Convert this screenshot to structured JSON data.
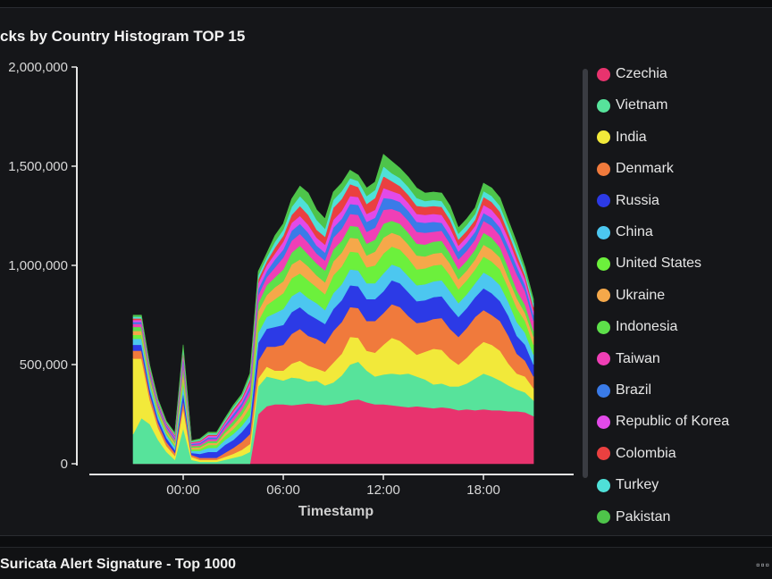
{
  "panel": {
    "title": "cks by Country Histogram TOP 15"
  },
  "bottom_panel": {
    "title": "Suricata Alert Signature - Top 1000",
    "menu_icon": "grid-icon"
  },
  "chart_data": {
    "type": "area",
    "stacked": true,
    "title": "cks by Country Histogram TOP 15",
    "xlabel": "Timestamp",
    "ylabel": "",
    "ylim": [
      0,
      2000000
    ],
    "y_ticks": [
      {
        "value": 0,
        "label": "0"
      },
      {
        "value": 500000,
        "label": "500,000"
      },
      {
        "value": 1000000,
        "label": "1,000,000"
      },
      {
        "value": 1500000,
        "label": "1,500,000"
      },
      {
        "value": 2000000,
        "label": "2,000,000"
      }
    ],
    "x_ticks": [
      {
        "value": 3,
        "label": "00:00"
      },
      {
        "value": 9,
        "label": "06:00"
      },
      {
        "value": 15,
        "label": "12:00"
      },
      {
        "value": 21,
        "label": "18:00"
      }
    ],
    "x_unit": "hours since series start (half-hour samples)",
    "x": [
      0,
      0.5,
      1,
      1.5,
      2,
      2.5,
      3,
      3.5,
      4,
      4.5,
      5,
      5.5,
      6,
      6.5,
      7,
      7.5,
      8,
      8.5,
      9,
      9.5,
      10,
      10.5,
      11,
      11.5,
      12,
      12.5,
      13,
      13.5,
      14,
      14.5,
      15,
      15.5,
      16,
      16.5,
      17,
      17.5,
      18,
      18.5,
      19,
      19.5,
      20,
      20.5,
      21,
      21.5,
      22,
      22.5,
      23,
      23.5,
      24,
      24.5,
      25,
      25.5,
      26,
      26.5,
      27,
      27.5,
      28,
      28.5,
      29,
      29.5,
      30
    ],
    "legend_position": "right",
    "grid": false,
    "series": [
      {
        "name": "Czechia",
        "color": "#e8336e",
        "values": [
          0,
          0,
          0,
          0,
          0,
          0,
          0,
          0,
          0,
          0,
          0,
          0,
          0,
          0,
          0,
          0,
          0,
          0,
          0,
          0,
          0,
          0,
          0,
          0,
          0,
          0,
          0,
          0,
          0,
          0,
          0,
          0,
          0,
          0,
          0,
          0,
          0,
          0,
          0,
          0,
          0,
          0,
          0,
          0,
          0,
          0,
          0,
          0,
          0,
          0,
          0,
          0,
          0,
          0,
          0,
          0,
          0,
          0,
          0,
          0,
          0
        ]
      },
      {
        "name": "Vietnam",
        "color": "#57e39b",
        "values": [
          0,
          0,
          0,
          0,
          0,
          0,
          0,
          0,
          0,
          0,
          0,
          0,
          0,
          0,
          0,
          0,
          0,
          0,
          0,
          0,
          0,
          0,
          0,
          0,
          0,
          0,
          0,
          0,
          0,
          0,
          0,
          0,
          0,
          0,
          0,
          0,
          0,
          0,
          0,
          0,
          0,
          0,
          0,
          0,
          0,
          0,
          0,
          0,
          0,
          0,
          0,
          0,
          0,
          0,
          0,
          0,
          0,
          0,
          0,
          0,
          0
        ]
      },
      {
        "name": "India",
        "color": "#f2e93a",
        "values": [
          0,
          0,
          0,
          0,
          0,
          0,
          0,
          0,
          0,
          0,
          0,
          0,
          0,
          0,
          0,
          0,
          0,
          0,
          0,
          0,
          0,
          0,
          0,
          0,
          0,
          0,
          0,
          0,
          0,
          0,
          0,
          0,
          0,
          0,
          0,
          0,
          0,
          0,
          0,
          0,
          0,
          0,
          0,
          0,
          0,
          0,
          0,
          0,
          0,
          0,
          0,
          0,
          0,
          0,
          0,
          0,
          0,
          0,
          0,
          0,
          0
        ]
      },
      {
        "name": "Denmark",
        "color": "#f07a3c",
        "values": [
          0,
          0,
          0,
          0,
          0,
          0,
          0,
          0,
          0,
          0,
          0,
          0,
          0,
          0,
          0,
          0,
          0,
          0,
          0,
          0,
          0,
          0,
          0,
          0,
          0,
          0,
          0,
          0,
          0,
          0,
          0,
          0,
          0,
          0,
          0,
          0,
          0,
          0,
          0,
          0,
          0,
          0,
          0,
          0,
          0,
          0,
          0,
          0,
          0,
          0,
          0,
          0,
          0,
          0,
          0,
          0,
          0,
          0,
          0,
          0,
          0
        ]
      },
      {
        "name": "Russia",
        "color": "#2c3ae6",
        "values": [
          0,
          0,
          0,
          0,
          0,
          0,
          0,
          0,
          0,
          0,
          0,
          0,
          0,
          0,
          0,
          0,
          0,
          0,
          0,
          0,
          0,
          0,
          0,
          0,
          0,
          0,
          0,
          0,
          0,
          0,
          0,
          0,
          0,
          0,
          0,
          0,
          0,
          0,
          0,
          0,
          0,
          0,
          0,
          0,
          0,
          0,
          0,
          0,
          0,
          0,
          0,
          0,
          0,
          0,
          0,
          0,
          0,
          0,
          0,
          0,
          0
        ]
      },
      {
        "name": "China",
        "color": "#4cc7f0",
        "values": [
          0,
          0,
          0,
          0,
          0,
          0,
          0,
          0,
          0,
          0,
          0,
          0,
          0,
          0,
          0,
          0,
          0,
          0,
          0,
          0,
          0,
          0,
          0,
          0,
          0,
          0,
          0,
          0,
          0,
          0,
          0,
          0,
          0,
          0,
          0,
          0,
          0,
          0,
          0,
          0,
          0,
          0,
          0,
          0,
          0,
          0,
          0,
          0,
          0,
          0,
          0,
          0,
          0,
          0,
          0,
          0,
          0,
          0,
          0,
          0,
          0
        ]
      },
      {
        "name": "United States",
        "color": "#6cf03c",
        "values": [
          0,
          0,
          0,
          0,
          0,
          0,
          0,
          0,
          0,
          0,
          0,
          0,
          0,
          0,
          0,
          0,
          0,
          0,
          0,
          0,
          0,
          0,
          0,
          0,
          0,
          0,
          0,
          0,
          0,
          0,
          0,
          0,
          0,
          0,
          0,
          0,
          0,
          0,
          0,
          0,
          0,
          0,
          0,
          0,
          0,
          0,
          0,
          0,
          0,
          0,
          0,
          0,
          0,
          0,
          0,
          0,
          0,
          0,
          0,
          0,
          0
        ]
      },
      {
        "name": "Ukraine",
        "color": "#f5a84a",
        "values": [
          0,
          0,
          0,
          0,
          0,
          0,
          0,
          0,
          0,
          0,
          0,
          0,
          0,
          0,
          0,
          0,
          0,
          0,
          0,
          0,
          0,
          0,
          0,
          0,
          0,
          0,
          0,
          0,
          0,
          0,
          0,
          0,
          0,
          0,
          0,
          0,
          0,
          0,
          0,
          0,
          0,
          0,
          0,
          0,
          0,
          0,
          0,
          0,
          0,
          0,
          0,
          0,
          0,
          0,
          0,
          0,
          0,
          0,
          0,
          0,
          0
        ]
      },
      {
        "name": "Indonesia",
        "color": "#5de04a",
        "values": [
          0,
          0,
          0,
          0,
          0,
          0,
          0,
          0,
          0,
          0,
          0,
          0,
          0,
          0,
          0,
          0,
          0,
          0,
          0,
          0,
          0,
          0,
          0,
          0,
          0,
          0,
          0,
          0,
          0,
          0,
          0,
          0,
          0,
          0,
          0,
          0,
          0,
          0,
          0,
          0,
          0,
          0,
          0,
          0,
          0,
          0,
          0,
          0,
          0,
          0,
          0,
          0,
          0,
          0,
          0,
          0,
          0,
          0,
          0,
          0,
          0
        ]
      },
      {
        "name": "Taiwan",
        "color": "#ef3fb6",
        "values": [
          0,
          0,
          0,
          0,
          0,
          0,
          0,
          0,
          0,
          0,
          0,
          0,
          0,
          0,
          0,
          0,
          0,
          0,
          0,
          0,
          0,
          0,
          0,
          0,
          0,
          0,
          0,
          0,
          0,
          0,
          0,
          0,
          0,
          0,
          0,
          0,
          0,
          0,
          0,
          0,
          0,
          0,
          0,
          0,
          0,
          0,
          0,
          0,
          0,
          0,
          0,
          0,
          0,
          0,
          0,
          0,
          0,
          0,
          0,
          0,
          0
        ]
      },
      {
        "name": "Brazil",
        "color": "#3a7be8",
        "values": [
          0,
          0,
          0,
          0,
          0,
          0,
          0,
          0,
          0,
          0,
          0,
          0,
          0,
          0,
          0,
          0,
          0,
          0,
          0,
          0,
          0,
          0,
          0,
          0,
          0,
          0,
          0,
          0,
          0,
          0,
          0,
          0,
          0,
          0,
          0,
          0,
          0,
          0,
          0,
          0,
          0,
          0,
          0,
          0,
          0,
          0,
          0,
          0,
          0,
          0,
          0,
          0,
          0,
          0,
          0,
          0,
          0,
          0,
          0,
          0,
          0
        ]
      },
      {
        "name": "Republic of Korea",
        "color": "#e24ae8",
        "values": [
          0,
          0,
          0,
          0,
          0,
          0,
          0,
          0,
          0,
          0,
          0,
          0,
          0,
          0,
          0,
          0,
          0,
          0,
          0,
          0,
          0,
          0,
          0,
          0,
          0,
          0,
          0,
          0,
          0,
          0,
          0,
          0,
          0,
          0,
          0,
          0,
          0,
          0,
          0,
          0,
          0,
          0,
          0,
          0,
          0,
          0,
          0,
          0,
          0,
          0,
          0,
          0,
          0,
          0,
          0,
          0,
          0,
          0,
          0,
          0,
          0
        ]
      },
      {
        "name": "Colombia",
        "color": "#ea4040",
        "values": [
          0,
          0,
          0,
          0,
          0,
          0,
          0,
          0,
          0,
          0,
          0,
          0,
          0,
          0,
          0,
          0,
          0,
          0,
          0,
          0,
          0,
          0,
          0,
          0,
          0,
          0,
          0,
          0,
          0,
          0,
          0,
          0,
          0,
          0,
          0,
          0,
          0,
          0,
          0,
          0,
          0,
          0,
          0,
          0,
          0,
          0,
          0,
          0,
          0,
          0,
          0,
          0,
          0,
          0,
          0,
          0,
          0,
          0,
          0,
          0,
          0
        ]
      },
      {
        "name": "Turkey",
        "color": "#4fe0d8",
        "values": [
          0,
          0,
          0,
          0,
          0,
          0,
          0,
          0,
          0,
          0,
          0,
          0,
          0,
          0,
          0,
          0,
          0,
          0,
          0,
          0,
          0,
          0,
          0,
          0,
          0,
          0,
          0,
          0,
          0,
          0,
          0,
          0,
          0,
          0,
          0,
          0,
          0,
          0,
          0,
          0,
          0,
          0,
          0,
          0,
          0,
          0,
          0,
          0,
          0,
          0,
          0,
          0,
          0,
          0,
          0,
          0,
          0,
          0,
          0,
          0,
          0
        ]
      },
      {
        "name": "Pakistan",
        "color": "#4ec44a",
        "values": [
          0,
          0,
          0,
          0,
          0,
          0,
          0,
          0,
          0,
          0,
          0,
          0,
          0,
          0,
          0,
          0,
          0,
          0,
          0,
          0,
          0,
          0,
          0,
          0,
          0,
          0,
          0,
          0,
          0,
          0,
          0,
          0,
          0,
          0,
          0,
          0,
          0,
          0,
          0,
          0,
          0,
          0,
          0,
          0,
          0,
          0,
          0,
          0,
          0,
          0,
          0,
          0,
          0,
          0,
          0,
          0,
          0,
          0,
          0,
          0,
          0
        ]
      }
    ]
  }
}
